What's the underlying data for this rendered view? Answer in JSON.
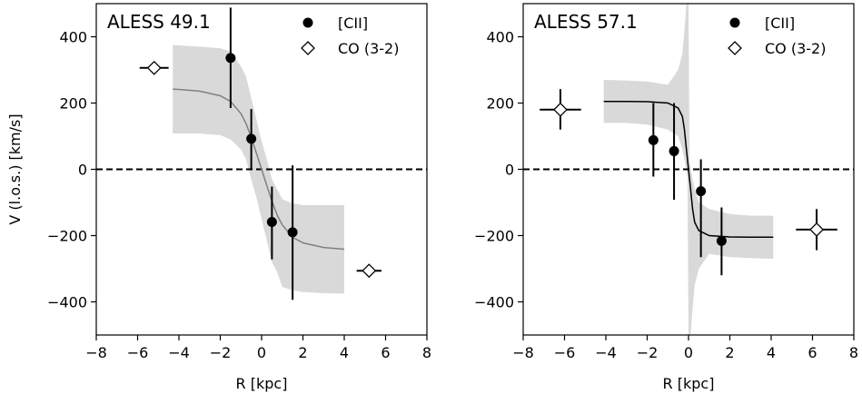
{
  "chart_data": [
    {
      "type": "scatter",
      "title": "ALESS 49.1",
      "xlabel": "R [kpc]",
      "ylabel": "V (l.o.s.) [km/s]",
      "xlim": [
        -8,
        8
      ],
      "ylim": [
        -500,
        500
      ],
      "xticks": [
        "−8",
        "−6",
        "−4",
        "−2",
        "0",
        "2",
        "4",
        "6",
        "8"
      ],
      "yticks": [
        "−400",
        "−200",
        "0",
        "200",
        "400"
      ],
      "legend_position": "top-right",
      "zero_line": true,
      "series": [
        {
          "name": "[CII]",
          "marker": "filled-circle",
          "color": "#000000",
          "points": [
            {
              "x": -1.5,
              "y": 336,
              "ylow": 185,
              "yhigh": 488
            },
            {
              "x": -0.5,
              "y": 92,
              "ylow": 2,
              "yhigh": 182
            },
            {
              "x": 0.5,
              "y": -159,
              "ylow": -272,
              "yhigh": -52
            },
            {
              "x": 1.5,
              "y": -190,
              "ylow": -394,
              "yhigh": 12
            }
          ]
        },
        {
          "name": "CO (3-2)",
          "marker": "open-diamond",
          "color": "#000000",
          "points": [
            {
              "x": -5.2,
              "y": 306,
              "xlow": -5.9,
              "xhigh": -4.5
            },
            {
              "x": 5.2,
              "y": -306,
              "xlow": 4.6,
              "xhigh": 5.8
            }
          ]
        }
      ],
      "model_curve": {
        "color": "#808080",
        "x": [
          -4.3,
          -4,
          -3,
          -2,
          -1.5,
          -1,
          -0.75,
          -0.5,
          -0.25,
          0,
          0.25,
          0.5,
          0.75,
          1,
          1.5,
          2,
          3,
          4
        ],
        "y": [
          242,
          241,
          236,
          222,
          205,
          168,
          138,
          96,
          49,
          0,
          -49,
          -96,
          -138,
          -168,
          -205,
          -222,
          -236,
          -241
        ]
      },
      "uncertainty_band": {
        "color": "#d9d9d9",
        "x": [
          -4.3,
          -4,
          -3,
          -2,
          -1.5,
          -1,
          -0.75,
          -0.5,
          -0.25,
          0,
          0.25,
          0.5,
          0.75,
          1,
          1.5,
          2,
          3,
          4
        ],
        "upper": [
          375,
          374,
          370,
          365,
          355,
          310,
          280,
          215,
          150,
          85,
          30,
          -30,
          -60,
          -90,
          -103,
          -108,
          -108,
          -108
        ],
        "lower": [
          108,
          108,
          108,
          103,
          90,
          60,
          30,
          -30,
          -85,
          -150,
          -215,
          -280,
          -310,
          -355,
          -365,
          -370,
          -374,
          -375
        ]
      }
    },
    {
      "type": "scatter",
      "title": "ALESS 57.1",
      "xlabel": "R [kpc]",
      "ylabel": "",
      "xlim": [
        -8,
        8
      ],
      "ylim": [
        -500,
        500
      ],
      "xticks": [
        "−8",
        "−6",
        "−4",
        "−2",
        "0",
        "2",
        "4",
        "6",
        "8"
      ],
      "yticks": [
        "−400",
        "−200",
        "0",
        "200",
        "400"
      ],
      "legend_position": "top-right",
      "zero_line": true,
      "series": [
        {
          "name": "[CII]",
          "marker": "filled-circle",
          "color": "#000000",
          "points": [
            {
              "x": -1.7,
              "y": 88,
              "ylow": -22,
              "yhigh": 200
            },
            {
              "x": -0.7,
              "y": 55,
              "ylow": -92,
              "yhigh": 200
            },
            {
              "x": 0.6,
              "y": -66,
              "ylow": -265,
              "yhigh": 30
            },
            {
              "x": 1.6,
              "y": -216,
              "ylow": -320,
              "yhigh": -115
            }
          ]
        },
        {
          "name": "CO (3-2)",
          "marker": "open-diamond",
          "color": "#000000",
          "points": [
            {
              "x": -6.2,
              "y": 180,
              "xlow": -7.2,
              "xhigh": -5.2,
              "ylow": 120,
              "yhigh": 242
            },
            {
              "x": 6.2,
              "y": -182,
              "xlow": 5.2,
              "xhigh": 7.2,
              "ylow": -244,
              "yhigh": -120
            }
          ]
        }
      ],
      "model_curve": {
        "color": "#000000",
        "x": [
          -4.1,
          -3,
          -2,
          -1,
          -0.5,
          -0.3,
          -0.2,
          -0.1,
          0,
          0.1,
          0.2,
          0.3,
          0.5,
          1,
          2,
          3,
          4.1
        ],
        "y": [
          205,
          205,
          204,
          200,
          185,
          160,
          120,
          60,
          0,
          -60,
          -120,
          -160,
          -185,
          -200,
          -204,
          -205,
          -205
        ]
      },
      "uncertainty_band": {
        "color": "#d9d9d9",
        "x": [
          -4.1,
          -3,
          -2,
          -1,
          -0.5,
          -0.3,
          -0.2,
          -0.1,
          -0.05,
          0,
          0.05,
          0.1,
          0.2,
          0.3,
          0.5,
          1,
          2,
          3,
          4.1
        ],
        "upper": [
          270,
          268,
          265,
          255,
          300,
          350,
          420,
          500,
          500,
          500,
          25,
          5,
          -30,
          -60,
          -100,
          -120,
          -135,
          -140,
          -140
        ],
        "lower": [
          140,
          140,
          135,
          120,
          100,
          60,
          30,
          -5,
          -25,
          -500,
          -500,
          -500,
          -420,
          -350,
          -300,
          -255,
          -265,
          -268,
          -270
        ]
      }
    }
  ]
}
